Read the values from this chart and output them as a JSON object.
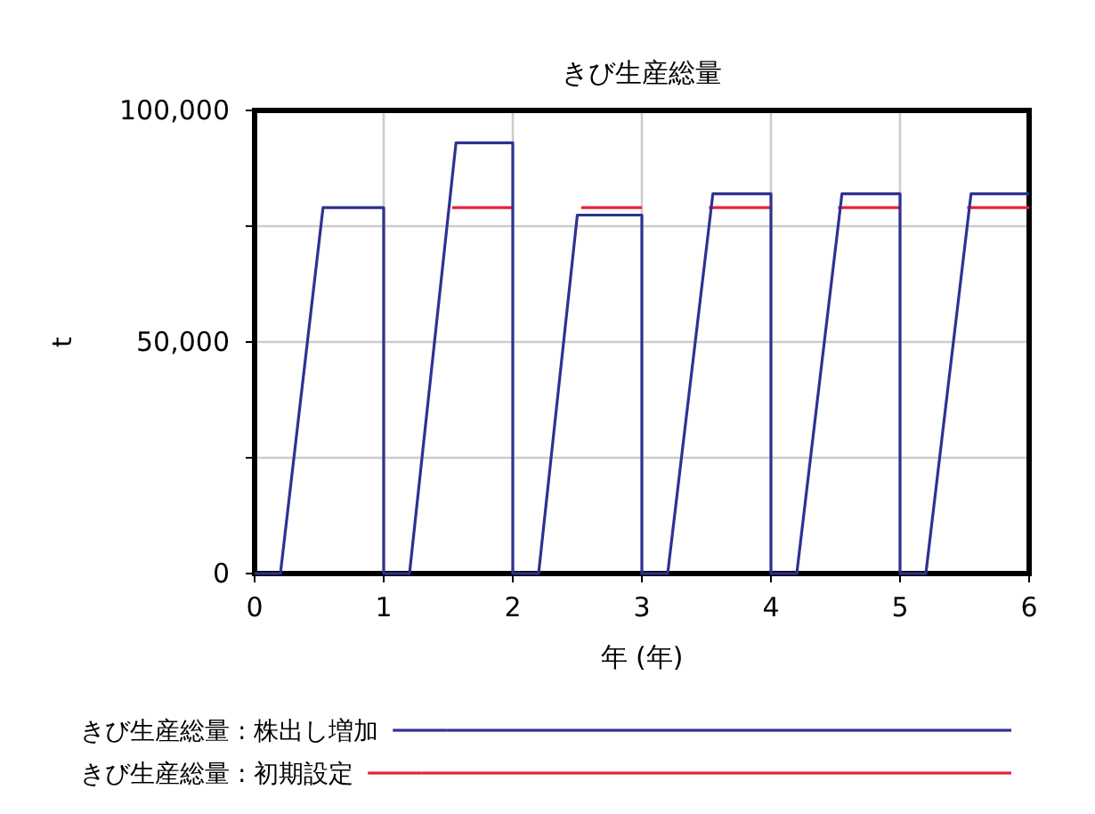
{
  "chart_data": {
    "type": "line",
    "title": "きび生産総量",
    "xlabel": "年 (年)",
    "ylabel": "t",
    "xlim": [
      0,
      6
    ],
    "xticks": [
      0,
      1,
      2,
      3,
      4,
      5,
      6
    ],
    "ylim": [
      0,
      100000
    ],
    "yticks": [
      {
        "value": 0,
        "label": "0"
      },
      {
        "value": 25000,
        "label": null
      },
      {
        "value": 50000,
        "label": "50,000"
      },
      {
        "value": 75000,
        "label": null
      },
      {
        "value": 100000,
        "label": "100,000"
      }
    ],
    "grid": true,
    "legend": "bottom",
    "line_style": "solid",
    "marker": "none",
    "series": [
      {
        "name": "きび生産総量 : 株出し増加",
        "color": "#2e3192",
        "x": [
          0,
          0.2,
          0.53,
          1,
          1,
          1.2,
          1.56,
          2,
          2,
          2.2,
          2.5,
          3,
          3,
          3.2,
          3.55,
          4,
          4,
          4.2,
          4.55,
          5,
          5,
          5.2,
          5.55,
          6
        ],
        "values": [
          0,
          0,
          79000,
          79000,
          0,
          0,
          93000,
          93000,
          0,
          0,
          77400,
          77400,
          0,
          0,
          82000,
          82000,
          0,
          0,
          82000,
          82000,
          0,
          0,
          82000,
          82000
        ]
      },
      {
        "name": "きび生産総量 : 初期設定",
        "color": "#e8203a",
        "x": [
          1.53,
          2,
          null,
          2.53,
          3,
          null,
          3.52,
          4,
          null,
          4.52,
          5,
          null,
          5.52,
          6
        ],
        "values": [
          79000,
          79000,
          null,
          79000,
          79000,
          null,
          79000,
          79000,
          null,
          79000,
          79000,
          null,
          79000,
          79000
        ]
      }
    ]
  }
}
